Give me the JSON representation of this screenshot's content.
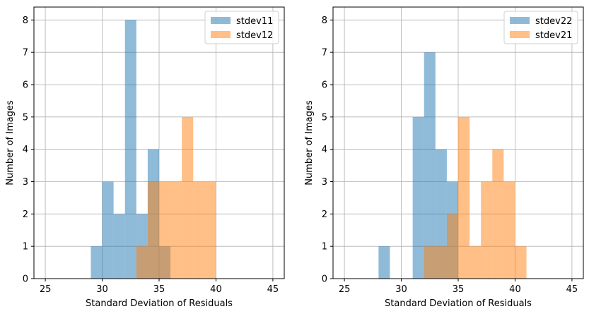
{
  "chart_data": [
    {
      "type": "histogram",
      "xlabel": "Standard Deviation of Residuals",
      "ylabel": "Number of Images",
      "xlim": [
        24,
        46
      ],
      "ylim": [
        0,
        8.4
      ],
      "xticks": [
        25,
        30,
        35,
        40,
        45
      ],
      "yticks": [
        0,
        1,
        2,
        3,
        4,
        5,
        6,
        7,
        8
      ],
      "grid": true,
      "legend_position": "top-right",
      "series": [
        {
          "name": "stdev11",
          "color": "#1f77b4",
          "alpha": 0.5,
          "bins": [
            [
              29,
              30,
              1
            ],
            [
              30,
              31,
              3
            ],
            [
              31,
              32,
              2
            ],
            [
              32,
              33,
              8
            ],
            [
              33,
              34,
              2
            ],
            [
              34,
              35,
              4
            ],
            [
              35,
              36,
              1
            ]
          ]
        },
        {
          "name": "stdev12",
          "color": "#ff7f0e",
          "alpha": 0.5,
          "bins": [
            [
              33,
              34,
              1
            ],
            [
              34,
              35,
              3
            ],
            [
              35,
              36,
              3
            ],
            [
              36,
              37,
              3
            ],
            [
              37,
              38,
              5
            ],
            [
              38,
              39,
              3
            ],
            [
              39,
              40,
              3
            ]
          ]
        }
      ]
    },
    {
      "type": "histogram",
      "xlabel": "Standard Deviation of Residuals",
      "ylabel": "Number of Images",
      "xlim": [
        24,
        46
      ],
      "ylim": [
        0,
        8.4
      ],
      "xticks": [
        25,
        30,
        35,
        40,
        45
      ],
      "yticks": [
        0,
        1,
        2,
        3,
        4,
        5,
        6,
        7,
        8
      ],
      "grid": true,
      "legend_position": "top-right",
      "series": [
        {
          "name": "stdev22",
          "color": "#1f77b4",
          "alpha": 0.5,
          "bins": [
            [
              28,
              29,
              1
            ],
            [
              31,
              32,
              5
            ],
            [
              32,
              33,
              7
            ],
            [
              33,
              34,
              4
            ],
            [
              34,
              35,
              3
            ]
          ]
        },
        {
          "name": "stdev21",
          "color": "#ff7f0e",
          "alpha": 0.5,
          "bins": [
            [
              32,
              33,
              1
            ],
            [
              33,
              34,
              1
            ],
            [
              34,
              35,
              2
            ],
            [
              35,
              36,
              5
            ],
            [
              36,
              37,
              1
            ],
            [
              37,
              38,
              3
            ],
            [
              38,
              39,
              4
            ],
            [
              39,
              40,
              3
            ],
            [
              40,
              41,
              1
            ]
          ]
        }
      ]
    }
  ]
}
